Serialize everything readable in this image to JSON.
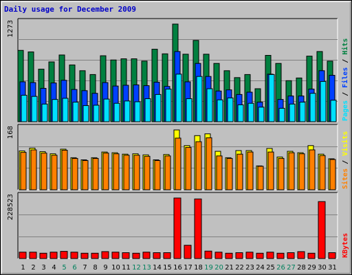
{
  "title": "Daily usage for December 2009",
  "colors": {
    "background": "#c0c0c0",
    "title": "#0000c8",
    "hits": "#008040",
    "files": "#0040ff",
    "pages": "#00e0ff",
    "visits": "#ffff00",
    "sites": "#ff8000",
    "kbytes": "#ff0000",
    "weekend_label": "#00805c",
    "weekday_label": "#000000"
  },
  "chart_data": [
    {
      "type": "bar",
      "panel": "top",
      "ylabel_max": "1273",
      "ymax": 1273,
      "legend": [
        "Hits",
        "Files",
        "Pages"
      ],
      "legend_separator": " / ",
      "categories": [
        "1",
        "2",
        "3",
        "4",
        "5",
        "6",
        "7",
        "8",
        "9",
        "10",
        "11",
        "12",
        "13",
        "14",
        "15",
        "16",
        "17",
        "18",
        "19",
        "20",
        "21",
        "22",
        "23",
        "24",
        "25",
        "26",
        "27",
        "28",
        "29",
        "30",
        "31"
      ],
      "weekend_days": [
        "5",
        "6",
        "12",
        "13",
        "19",
        "20",
        "26",
        "27"
      ],
      "series": [
        {
          "name": "Hits",
          "values": [
            930,
            910,
            685,
            780,
            870,
            740,
            665,
            615,
            860,
            805,
            820,
            820,
            790,
            945,
            885,
            1273,
            880,
            1060,
            880,
            760,
            665,
            575,
            615,
            430,
            865,
            760,
            535,
            570,
            855,
            915,
            790
          ]
        },
        {
          "name": "Files",
          "values": [
            520,
            510,
            435,
            505,
            540,
            420,
            405,
            370,
            510,
            465,
            475,
            480,
            470,
            515,
            460,
            915,
            520,
            760,
            590,
            400,
            415,
            355,
            385,
            255,
            620,
            290,
            335,
            335,
            425,
            665,
            605
          ]
        },
        {
          "name": "Pages",
          "values": [
            345,
            330,
            230,
            290,
            305,
            255,
            210,
            215,
            295,
            240,
            270,
            260,
            300,
            355,
            425,
            620,
            300,
            590,
            430,
            285,
            310,
            220,
            240,
            190,
            615,
            175,
            230,
            255,
            370,
            525,
            280
          ]
        }
      ]
    },
    {
      "type": "bar",
      "panel": "middle",
      "ylabel_max": "168",
      "ymax": 168,
      "legend": [
        "Visits",
        "Sites"
      ],
      "legend_separator": " / ",
      "categories": [
        "1",
        "2",
        "3",
        "4",
        "5",
        "6",
        "7",
        "8",
        "9",
        "10",
        "11",
        "12",
        "13",
        "14",
        "15",
        "16",
        "17",
        "18",
        "19",
        "20",
        "21",
        "22",
        "23",
        "24",
        "25",
        "26",
        "27",
        "28",
        "29",
        "30",
        "31"
      ],
      "series": [
        {
          "name": "Visits",
          "values": [
            109,
            117,
            107,
            101,
            114,
            90,
            84,
            90,
            106,
            104,
            100,
            101,
            98,
            84,
            99,
            168,
            124,
            152,
            157,
            108,
            90,
            110,
            110,
            67,
            116,
            92,
            108,
            104,
            124,
            100,
            87
          ]
        },
        {
          "name": "Sites",
          "values": [
            105,
            112,
            103,
            97,
            111,
            88,
            82,
            88,
            103,
            101,
            97,
            97,
            94,
            82,
            95,
            145,
            119,
            135,
            146,
            95,
            88,
            100,
            106,
            66,
            106,
            88,
            104,
            101,
            112,
            96,
            85
          ]
        }
      ]
    },
    {
      "type": "bar",
      "panel": "bottom",
      "ylabel_max": "228523",
      "ymax": 228523,
      "legend": [
        "KBytes"
      ],
      "categories": [
        "1",
        "2",
        "3",
        "4",
        "5",
        "6",
        "7",
        "8",
        "9",
        "10",
        "11",
        "12",
        "13",
        "14",
        "15",
        "16",
        "17",
        "18",
        "19",
        "20",
        "21",
        "22",
        "23",
        "24",
        "25",
        "26",
        "27",
        "28",
        "29",
        "30",
        "31"
      ],
      "series": [
        {
          "name": "KBytes",
          "values": [
            24000,
            24000,
            20000,
            24000,
            27000,
            24000,
            20000,
            20000,
            26000,
            24000,
            22000,
            20000,
            24000,
            22000,
            22000,
            228523,
            50000,
            225000,
            28000,
            24000,
            20000,
            22000,
            24000,
            20000,
            24000,
            20000,
            22000,
            26000,
            20000,
            215000,
            22000
          ]
        }
      ]
    }
  ]
}
